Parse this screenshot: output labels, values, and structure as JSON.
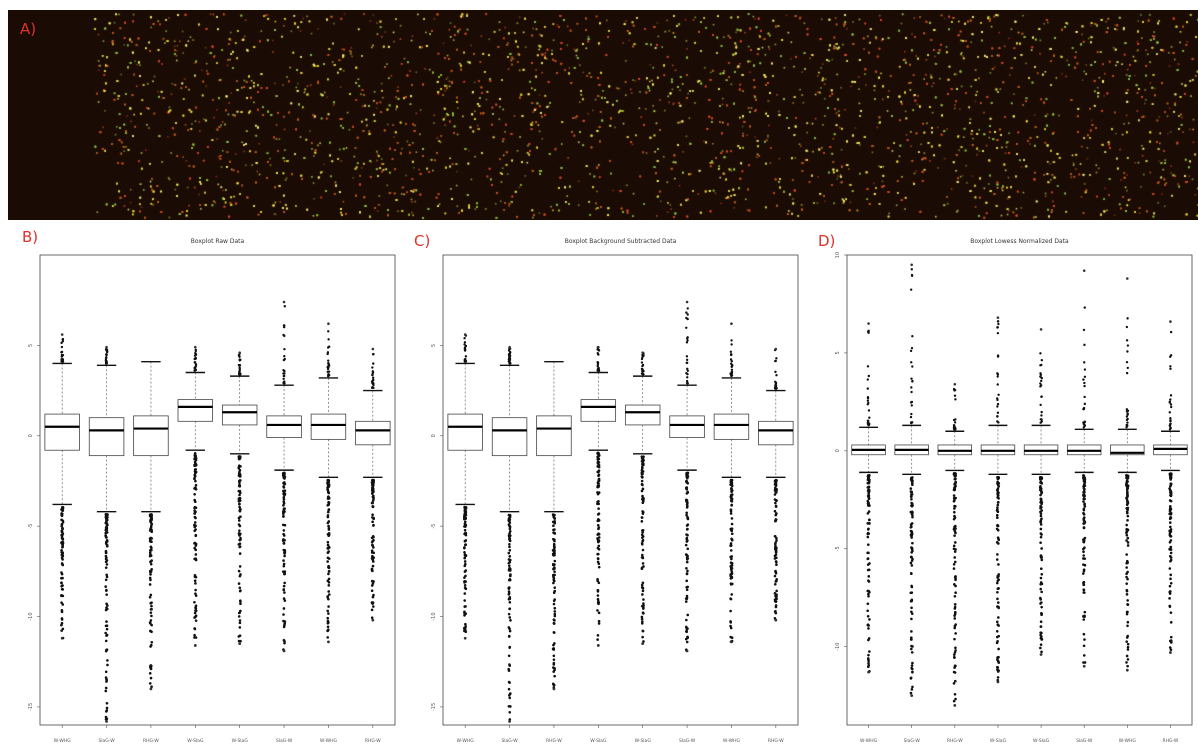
{
  "panel_a": {
    "letter": "A)",
    "background": "#1a0b04",
    "spot_colors": [
      "#e4d23a",
      "#cf4a24",
      "#8fc03c",
      "#f2e96a",
      "#b85a1a"
    ]
  },
  "chart_data": [
    {
      "type": "boxplot",
      "letter": "B)",
      "title": "Boxplot Raw Data",
      "ylim": [
        -16,
        10
      ],
      "yticks": [
        -15,
        -10,
        -5,
        0,
        5
      ],
      "categories": [
        "W-WHG",
        "SlaG-W",
        "RHG-W",
        "W-SlaG",
        "W-SlaG",
        "SlaG-W",
        "W-WHG",
        "RHG-W"
      ],
      "boxes": [
        {
          "q1": -0.8,
          "median": 0.5,
          "q3": 1.2,
          "whisker_low": -3.8,
          "whisker_high": 4.0,
          "outlier_low_min": -11.2,
          "outlier_high_max": 5.6
        },
        {
          "q1": -1.1,
          "median": 0.3,
          "q3": 1.0,
          "whisker_low": -4.2,
          "whisker_high": 3.9,
          "outlier_low_min": -15.8,
          "outlier_high_max": 4.9
        },
        {
          "q1": -1.1,
          "median": 0.4,
          "q3": 1.1,
          "whisker_low": -4.2,
          "whisker_high": 4.1,
          "outlier_low_min": -14.0,
          "outlier_high_max": 4.1
        },
        {
          "q1": 0.8,
          "median": 1.6,
          "q3": 2.0,
          "whisker_low": -0.8,
          "whisker_high": 3.5,
          "outlier_low_min": -11.6,
          "outlier_high_max": 4.9
        },
        {
          "q1": 0.6,
          "median": 1.3,
          "q3": 1.7,
          "whisker_low": -1.0,
          "whisker_high": 3.3,
          "outlier_low_min": -11.5,
          "outlier_high_max": 4.6
        },
        {
          "q1": -0.1,
          "median": 0.6,
          "q3": 1.1,
          "whisker_low": -1.9,
          "whisker_high": 2.8,
          "outlier_low_min": -11.9,
          "outlier_high_max": 7.4
        },
        {
          "q1": -0.2,
          "median": 0.6,
          "q3": 1.2,
          "whisker_low": -2.3,
          "whisker_high": 3.2,
          "outlier_low_min": -11.4,
          "outlier_high_max": 6.2
        },
        {
          "q1": -0.5,
          "median": 0.3,
          "q3": 0.8,
          "whisker_low": -2.3,
          "whisker_high": 2.5,
          "outlier_low_min": -10.2,
          "outlier_high_max": 4.8
        }
      ]
    },
    {
      "type": "boxplot",
      "letter": "C)",
      "title": "Boxplot Background Subtracted Data",
      "ylim": [
        -16,
        10
      ],
      "yticks": [
        -15,
        -10,
        -5,
        0,
        5
      ],
      "categories": [
        "W-WHG",
        "SlaG-W",
        "RHG-W",
        "W-SlaG",
        "W-SlaG",
        "SlaG-W",
        "W-WHG",
        "RHG-W"
      ],
      "boxes": [
        {
          "q1": -0.8,
          "median": 0.5,
          "q3": 1.2,
          "whisker_low": -3.8,
          "whisker_high": 4.0,
          "outlier_low_min": -11.2,
          "outlier_high_max": 5.6
        },
        {
          "q1": -1.1,
          "median": 0.3,
          "q3": 1.0,
          "whisker_low": -4.2,
          "whisker_high": 3.9,
          "outlier_low_min": -15.8,
          "outlier_high_max": 4.9
        },
        {
          "q1": -1.1,
          "median": 0.4,
          "q3": 1.1,
          "whisker_low": -4.2,
          "whisker_high": 4.1,
          "outlier_low_min": -14.0,
          "outlier_high_max": 4.1
        },
        {
          "q1": 0.8,
          "median": 1.6,
          "q3": 2.0,
          "whisker_low": -0.8,
          "whisker_high": 3.5,
          "outlier_low_min": -11.6,
          "outlier_high_max": 4.9
        },
        {
          "q1": 0.6,
          "median": 1.3,
          "q3": 1.7,
          "whisker_low": -1.0,
          "whisker_high": 3.3,
          "outlier_low_min": -11.5,
          "outlier_high_max": 4.6
        },
        {
          "q1": -0.1,
          "median": 0.6,
          "q3": 1.1,
          "whisker_low": -1.9,
          "whisker_high": 2.8,
          "outlier_low_min": -11.9,
          "outlier_high_max": 7.4
        },
        {
          "q1": -0.2,
          "median": 0.6,
          "q3": 1.2,
          "whisker_low": -2.3,
          "whisker_high": 3.2,
          "outlier_low_min": -11.4,
          "outlier_high_max": 6.2
        },
        {
          "q1": -0.5,
          "median": 0.3,
          "q3": 0.8,
          "whisker_low": -2.3,
          "whisker_high": 2.5,
          "outlier_low_min": -10.2,
          "outlier_high_max": 4.8
        }
      ]
    },
    {
      "type": "boxplot",
      "letter": "D)",
      "title": "Boxplot Lowess Normalized Data",
      "ylim": [
        -14,
        10
      ],
      "yticks": [
        -10,
        -5,
        0,
        5,
        10
      ],
      "categories": [
        "W-WHG",
        "SlaG-W",
        "RHG-W",
        "W-SlaG",
        "W-SlaG",
        "SlaG-W",
        "W-WHG",
        "RHG-W"
      ],
      "boxes": [
        {
          "q1": -0.2,
          "median": 0.05,
          "q3": 0.3,
          "whisker_low": -1.1,
          "whisker_high": 1.2,
          "outlier_low_min": -11.3,
          "outlier_high_max": 6.5
        },
        {
          "q1": -0.2,
          "median": 0.05,
          "q3": 0.3,
          "whisker_low": -1.2,
          "whisker_high": 1.3,
          "outlier_low_min": -12.5,
          "outlier_high_max": 9.5
        },
        {
          "q1": -0.2,
          "median": 0.0,
          "q3": 0.3,
          "whisker_low": -1.0,
          "whisker_high": 1.0,
          "outlier_low_min": -13.0,
          "outlier_high_max": 3.4
        },
        {
          "q1": -0.2,
          "median": 0.0,
          "q3": 0.3,
          "whisker_low": -1.2,
          "whisker_high": 1.3,
          "outlier_low_min": -11.8,
          "outlier_high_max": 6.8
        },
        {
          "q1": -0.2,
          "median": 0.0,
          "q3": 0.3,
          "whisker_low": -1.2,
          "whisker_high": 1.3,
          "outlier_low_min": -10.4,
          "outlier_high_max": 6.2
        },
        {
          "q1": -0.2,
          "median": 0.0,
          "q3": 0.3,
          "whisker_low": -1.1,
          "whisker_high": 1.1,
          "outlier_low_min": -11.0,
          "outlier_high_max": 9.2
        },
        {
          "q1": -0.2,
          "median": -0.1,
          "q3": 0.3,
          "whisker_low": -1.1,
          "whisker_high": 1.1,
          "outlier_low_min": -11.2,
          "outlier_high_max": 8.8
        },
        {
          "q1": -0.2,
          "median": 0.1,
          "q3": 0.3,
          "whisker_low": -1.0,
          "whisker_high": 1.0,
          "outlier_low_min": -10.3,
          "outlier_high_max": 6.6
        }
      ]
    }
  ]
}
